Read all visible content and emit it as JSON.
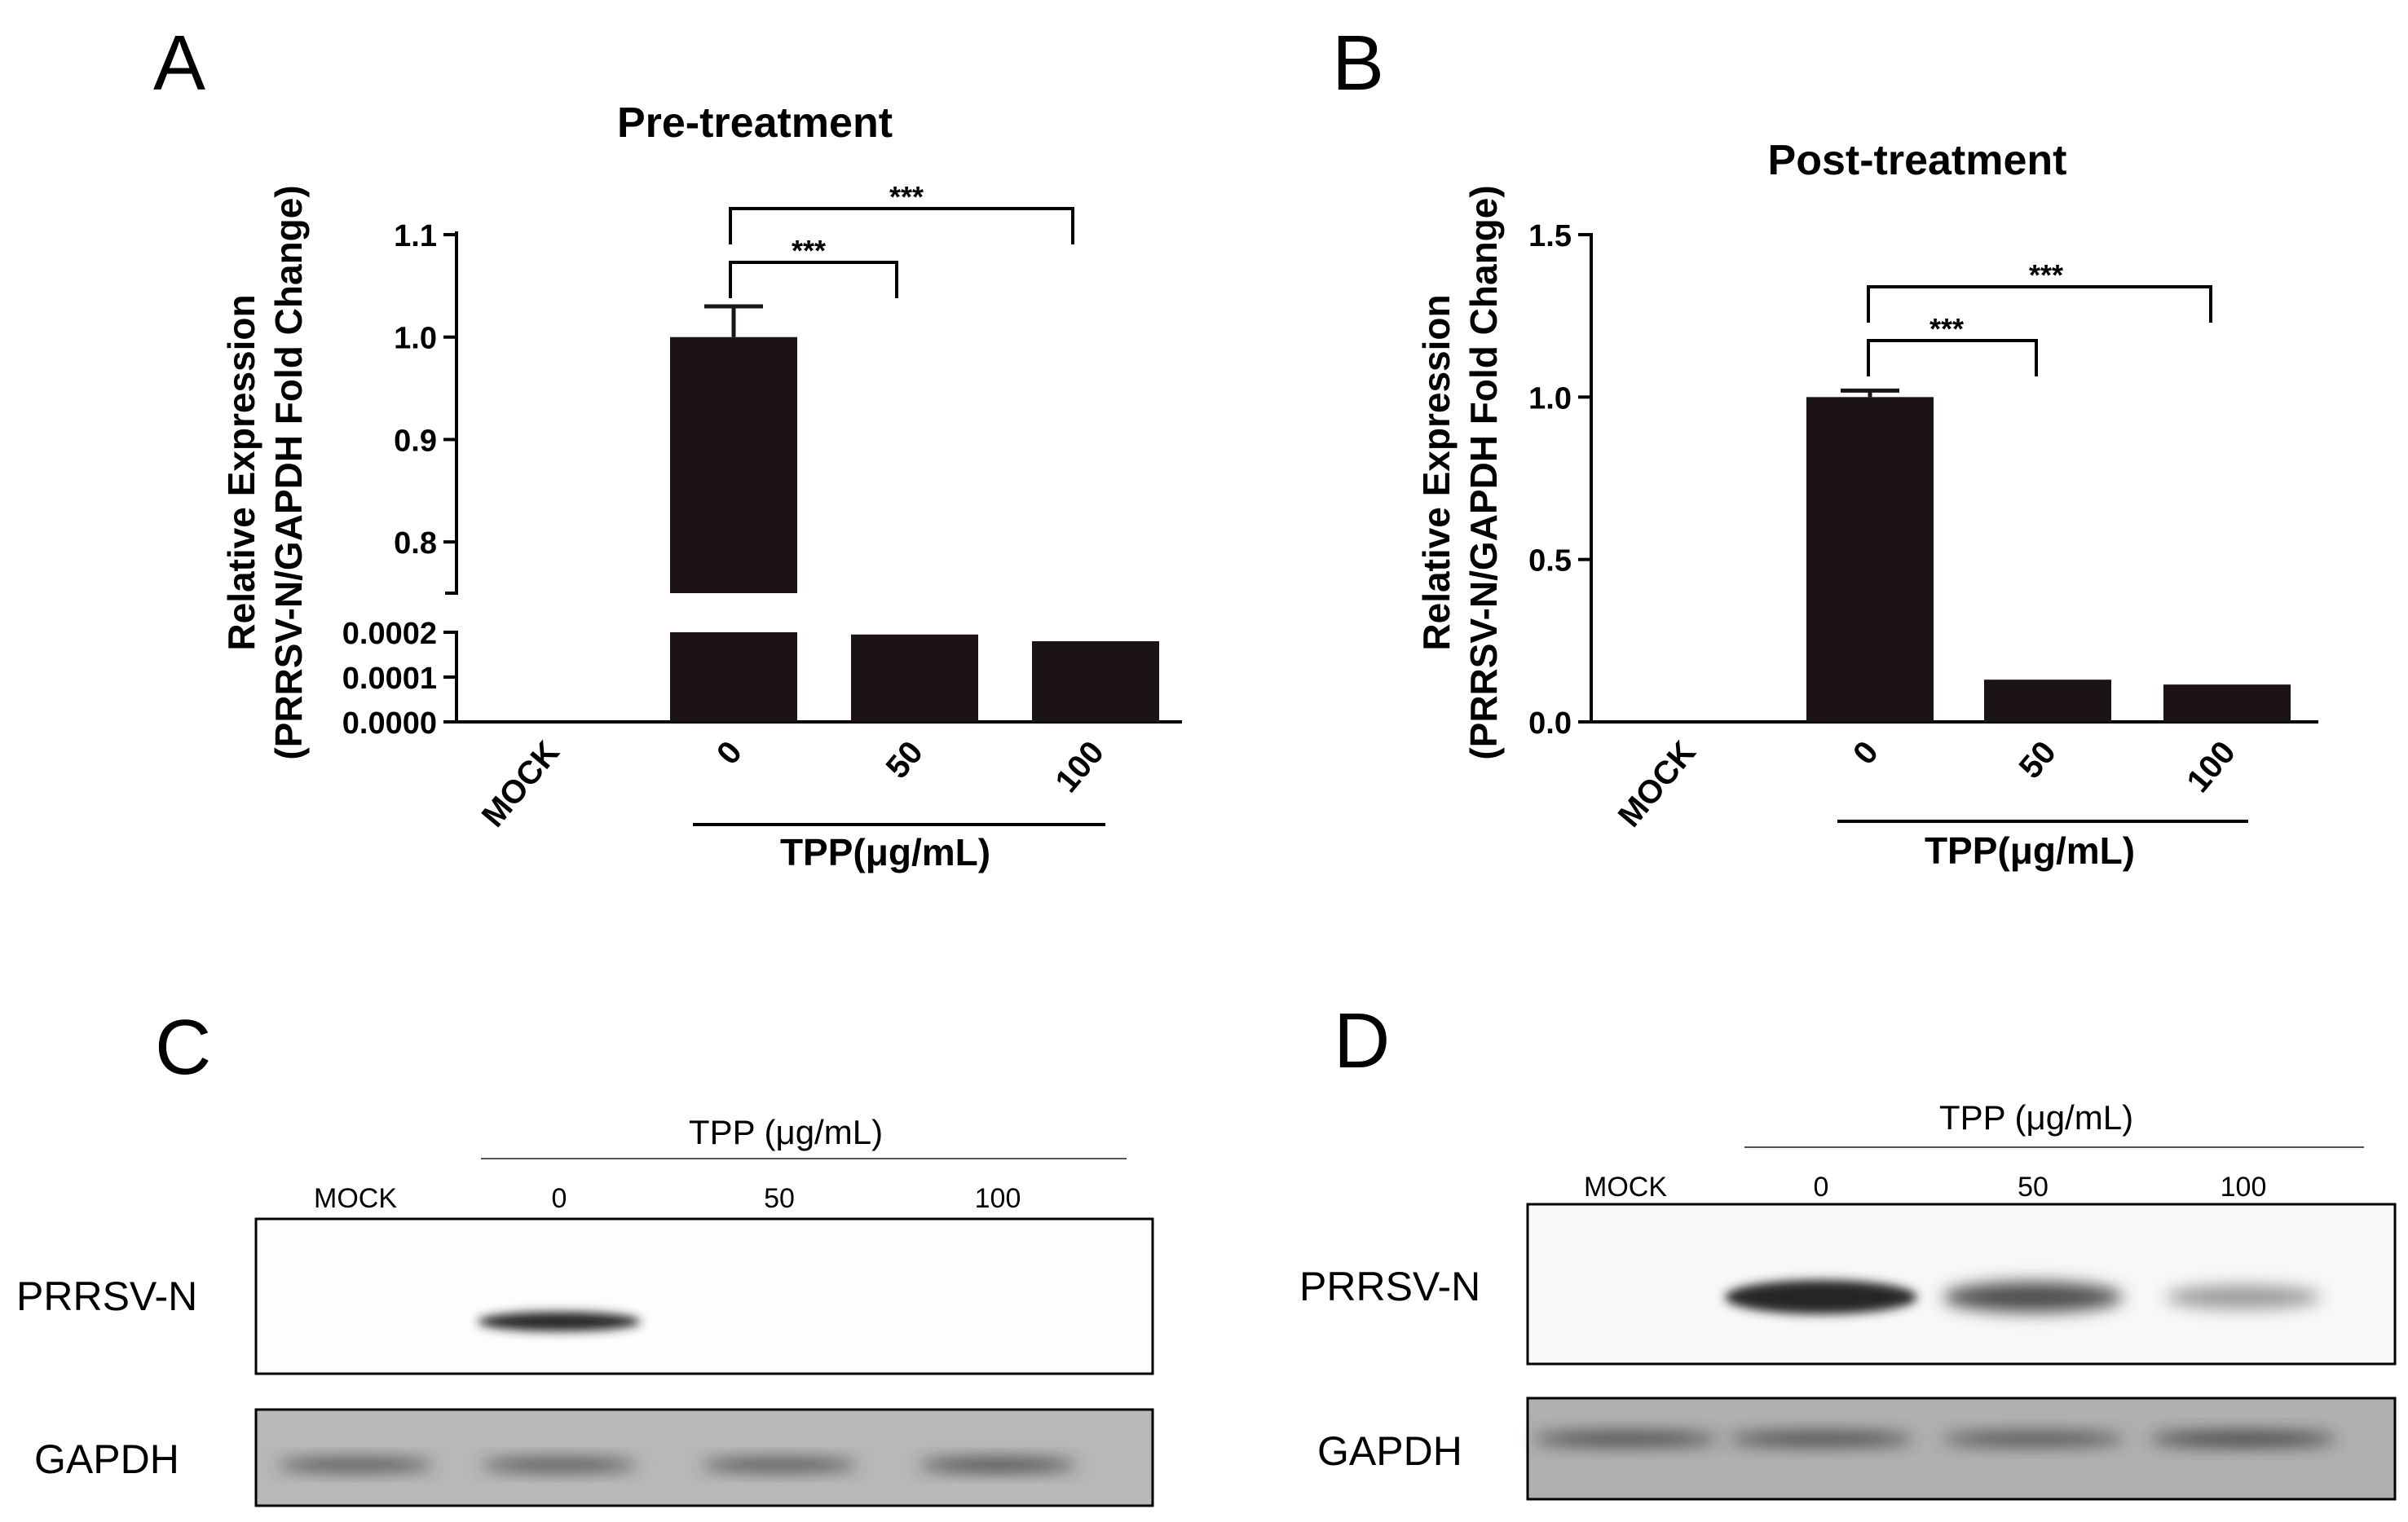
{
  "panels": {
    "A": {
      "letter": "A"
    },
    "B": {
      "letter": "B"
    },
    "C": {
      "letter": "C"
    },
    "D": {
      "letter": "D"
    }
  },
  "chart_data": [
    {
      "panel": "A",
      "type": "bar",
      "title": "Pre-treatment",
      "ylabel_line1": "Relative Expression",
      "ylabel_line2": "(PRRSV-N/GAPDH Fold Change)",
      "categories": [
        "MOCK",
        "0",
        "50",
        "100"
      ],
      "values": [
        0.0,
        1.0,
        0.000195,
        0.00018
      ],
      "errors": [
        0,
        0.03,
        5e-06,
        3e-06
      ],
      "y_axis_break": true,
      "lower_segment": {
        "range": [
          0.0,
          0.0002
        ],
        "ticks": [
          "0.0000",
          "0.0001",
          "0.0002"
        ]
      },
      "upper_segment": {
        "range": [
          0.75,
          1.1
        ],
        "ticks": [
          "0.8",
          "0.9",
          "1.0",
          "1.1"
        ]
      },
      "group_label": "TPP(μg/mL)",
      "significance": [
        {
          "from": "0",
          "to": "50",
          "label": "***"
        },
        {
          "from": "0",
          "to": "100",
          "label": "***"
        }
      ]
    },
    {
      "panel": "B",
      "type": "bar",
      "title": "Post-treatment",
      "ylabel_line1": "Relative Expression",
      "ylabel_line2": "(PRRSV-N/GAPDH Fold Change)",
      "categories": [
        "MOCK",
        "0",
        "50",
        "100"
      ],
      "values": [
        0.0,
        1.0,
        0.13,
        0.115
      ],
      "errors": [
        0,
        0.02,
        0.003,
        0.003
      ],
      "ylim": [
        0,
        1.5
      ],
      "ticks": [
        "0.0",
        "0.5",
        "1.0",
        "1.5"
      ],
      "group_label": "TPP(μg/mL)",
      "significance": [
        {
          "from": "0",
          "to": "50",
          "label": "***"
        },
        {
          "from": "0",
          "to": "100",
          "label": "***"
        }
      ]
    }
  ],
  "blots": [
    {
      "panel": "C",
      "group_label": "TPP (μg/mL)",
      "lanes": [
        "MOCK",
        "0",
        "50",
        "100"
      ],
      "rows": [
        {
          "label": "PRRSV-N",
          "intensities": [
            0.0,
            1.0,
            0.0,
            0.0
          ]
        },
        {
          "label": "GAPDH",
          "intensities": [
            0.85,
            0.85,
            0.85,
            0.9
          ]
        }
      ]
    },
    {
      "panel": "D",
      "group_label": "TPP (μg/mL)",
      "lanes": [
        "MOCK",
        "0",
        "50",
        "100"
      ],
      "rows": [
        {
          "label": "PRRSV-N",
          "intensities": [
            0.0,
            1.0,
            0.75,
            0.25
          ]
        },
        {
          "label": "GAPDH",
          "intensities": [
            0.85,
            0.85,
            0.8,
            0.9
          ]
        }
      ]
    }
  ]
}
